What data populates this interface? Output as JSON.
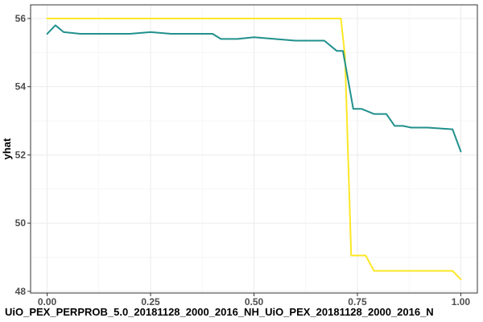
{
  "chart_data": {
    "type": "line",
    "title": "",
    "xlabel": "UiO_PEX_PERPROB_5.0_20181128_2000_2016_NH_UiO_PEX_20181128_2000_2016_N",
    "ylabel": "yhat",
    "xlim": [
      -0.04,
      1.04
    ],
    "ylim": [
      47.95,
      56.4
    ],
    "x_ticks": [
      0.0,
      0.25,
      0.5,
      0.75,
      1.0
    ],
    "x_tick_labels": [
      "0.00",
      "0.25",
      "0.50",
      "0.75",
      "1.00"
    ],
    "y_ticks": [
      48,
      50,
      52,
      54,
      56
    ],
    "y_tick_labels": [
      "48",
      "50",
      "52",
      "54",
      "56"
    ],
    "grid": true,
    "legend": "none",
    "series": [
      {
        "color": "#FDE725",
        "x": [
          0.0,
          0.71,
          0.72,
          0.735,
          0.77,
          0.79,
          0.98,
          1.0
        ],
        "y": [
          56.0,
          56.0,
          54.9,
          49.05,
          49.05,
          48.6,
          48.6,
          48.35
        ]
      },
      {
        "color": "#21908C",
        "x": [
          0.0,
          0.02,
          0.04,
          0.08,
          0.15,
          0.2,
          0.25,
          0.3,
          0.35,
          0.4,
          0.42,
          0.46,
          0.5,
          0.55,
          0.6,
          0.67,
          0.7,
          0.715,
          0.74,
          0.76,
          0.79,
          0.82,
          0.84,
          0.86,
          0.88,
          0.92,
          0.98,
          1.0
        ],
        "y": [
          55.55,
          55.8,
          55.6,
          55.55,
          55.55,
          55.55,
          55.6,
          55.55,
          55.55,
          55.55,
          55.4,
          55.4,
          55.45,
          55.4,
          55.35,
          55.35,
          55.05,
          55.05,
          53.35,
          53.35,
          53.2,
          53.2,
          52.85,
          52.85,
          52.8,
          52.8,
          52.75,
          52.1
        ]
      }
    ]
  }
}
